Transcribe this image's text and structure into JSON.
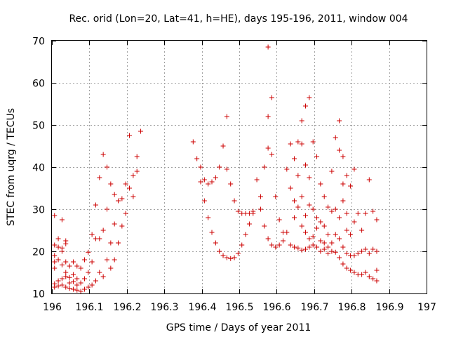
{
  "chart_data": {
    "type": "scatter",
    "title": "Rec. orid (Lon=20, Lat=41, h=HE), days 195-196, 2011, window 004",
    "xlabel": "GPS time / Days of year 2011",
    "ylabel": "STEC from uqrg / TECUs",
    "xlim": [
      196,
      197
    ],
    "ylim": [
      10,
      70
    ],
    "xticks": [
      "196",
      "196.1",
      "196.2",
      "196.3",
      "196.4",
      "196.5",
      "196.6",
      "196.7",
      "196.8",
      "196.9",
      "197"
    ],
    "yticks": [
      "10",
      "20",
      "30",
      "40",
      "50",
      "60",
      "70"
    ],
    "grid": true,
    "marker": "plus",
    "color": "#cc0000",
    "points": [
      [
        196.007,
        28.5
      ],
      [
        196.007,
        21.5
      ],
      [
        196.007,
        19
      ],
      [
        196.007,
        17.5
      ],
      [
        196.007,
        16
      ],
      [
        196.007,
        12.3
      ],
      [
        196.007,
        11.5
      ],
      [
        196.017,
        23
      ],
      [
        196.017,
        21
      ],
      [
        196.017,
        18
      ],
      [
        196.017,
        13
      ],
      [
        196.017,
        11.8
      ],
      [
        196.027,
        27.5
      ],
      [
        196.027,
        20.8
      ],
      [
        196.027,
        20
      ],
      [
        196.027,
        16.8
      ],
      [
        196.027,
        13.5
      ],
      [
        196.027,
        12
      ],
      [
        196.037,
        22.5
      ],
      [
        196.037,
        21.8
      ],
      [
        196.037,
        17.5
      ],
      [
        196.037,
        15
      ],
      [
        196.037,
        14
      ],
      [
        196.037,
        11.5
      ],
      [
        196.047,
        16.5
      ],
      [
        196.047,
        13.8
      ],
      [
        196.047,
        12.5
      ],
      [
        196.047,
        11.2
      ],
      [
        196.057,
        17.5
      ],
      [
        196.057,
        14.5
      ],
      [
        196.057,
        12.8
      ],
      [
        196.057,
        11
      ],
      [
        196.067,
        16.5
      ],
      [
        196.067,
        13.5
      ],
      [
        196.067,
        12
      ],
      [
        196.067,
        10.8
      ],
      [
        196.077,
        16
      ],
      [
        196.077,
        12.5
      ],
      [
        196.077,
        10.5
      ],
      [
        196.087,
        18
      ],
      [
        196.087,
        13.5
      ],
      [
        196.087,
        11
      ],
      [
        196.097,
        19.8
      ],
      [
        196.097,
        15
      ],
      [
        196.097,
        11.5
      ],
      [
        196.107,
        24
      ],
      [
        196.107,
        17.5
      ],
      [
        196.107,
        12
      ],
      [
        196.117,
        31
      ],
      [
        196.117,
        23
      ],
      [
        196.117,
        13
      ],
      [
        196.127,
        37.5
      ],
      [
        196.127,
        23
      ],
      [
        196.127,
        15
      ],
      [
        196.137,
        43
      ],
      [
        196.137,
        25
      ],
      [
        196.137,
        14
      ],
      [
        196.147,
        40
      ],
      [
        196.147,
        30
      ],
      [
        196.147,
        18
      ],
      [
        196.157,
        36
      ],
      [
        196.157,
        22
      ],
      [
        196.157,
        16
      ],
      [
        196.167,
        33.5
      ],
      [
        196.167,
        26.5
      ],
      [
        196.167,
        18
      ],
      [
        196.177,
        32
      ],
      [
        196.177,
        22
      ],
      [
        196.187,
        32.5
      ],
      [
        196.187,
        26
      ],
      [
        196.197,
        36
      ],
      [
        196.197,
        29
      ],
      [
        196.207,
        47.5
      ],
      [
        196.207,
        35
      ],
      [
        196.217,
        38
      ],
      [
        196.217,
        33
      ],
      [
        196.227,
        42.5
      ],
      [
        196.227,
        39
      ],
      [
        196.237,
        48.5
      ],
      [
        196.377,
        46
      ],
      [
        196.387,
        42
      ],
      [
        196.397,
        40
      ],
      [
        196.397,
        36.5
      ],
      [
        196.407,
        37
      ],
      [
        196.407,
        32
      ],
      [
        196.417,
        36
      ],
      [
        196.417,
        28
      ],
      [
        196.427,
        36.5
      ],
      [
        196.427,
        24.5
      ],
      [
        196.437,
        37.5
      ],
      [
        196.437,
        22
      ],
      [
        196.447,
        40
      ],
      [
        196.447,
        20
      ],
      [
        196.457,
        45
      ],
      [
        196.457,
        19
      ],
      [
        196.467,
        39.5
      ],
      [
        196.467,
        52
      ],
      [
        196.467,
        18.5
      ],
      [
        196.477,
        36
      ],
      [
        196.477,
        18.3
      ],
      [
        196.487,
        32
      ],
      [
        196.487,
        18.5
      ],
      [
        196.497,
        29.5
      ],
      [
        196.497,
        19.5
      ],
      [
        196.507,
        29
      ],
      [
        196.507,
        21.5
      ],
      [
        196.517,
        29
      ],
      [
        196.517,
        24
      ],
      [
        196.527,
        29
      ],
      [
        196.527,
        26.5
      ],
      [
        196.537,
        29.5
      ],
      [
        196.537,
        29
      ],
      [
        196.547,
        37
      ],
      [
        196.557,
        33
      ],
      [
        196.557,
        30
      ],
      [
        196.567,
        40
      ],
      [
        196.567,
        26
      ],
      [
        196.577,
        52
      ],
      [
        196.577,
        44.5
      ],
      [
        196.577,
        68.5
      ],
      [
        196.577,
        23
      ],
      [
        196.587,
        56.5
      ],
      [
        196.587,
        43
      ],
      [
        196.587,
        21.5
      ],
      [
        196.597,
        33
      ],
      [
        196.597,
        21
      ],
      [
        196.607,
        27.5
      ],
      [
        196.607,
        21.5
      ],
      [
        196.617,
        24.5
      ],
      [
        196.617,
        22.5
      ],
      [
        196.627,
        39.5
      ],
      [
        196.627,
        24.5
      ],
      [
        196.637,
        45.5
      ],
      [
        196.637,
        35
      ],
      [
        196.637,
        21.5
      ],
      [
        196.647,
        42
      ],
      [
        196.647,
        32
      ],
      [
        196.647,
        28
      ],
      [
        196.647,
        21
      ],
      [
        196.657,
        46
      ],
      [
        196.657,
        38
      ],
      [
        196.657,
        30.5
      ],
      [
        196.657,
        20.8
      ],
      [
        196.667,
        51
      ],
      [
        196.667,
        45.5
      ],
      [
        196.667,
        33
      ],
      [
        196.667,
        26
      ],
      [
        196.667,
        20.3
      ],
      [
        196.677,
        54.5
      ],
      [
        196.677,
        40.5
      ],
      [
        196.677,
        28.5
      ],
      [
        196.677,
        24.5
      ],
      [
        196.677,
        20.5
      ],
      [
        196.687,
        56.5
      ],
      [
        196.687,
        37.5
      ],
      [
        196.687,
        31
      ],
      [
        196.687,
        23
      ],
      [
        196.687,
        21
      ],
      [
        196.697,
        46
      ],
      [
        196.697,
        30
      ],
      [
        196.697,
        23.5
      ],
      [
        196.697,
        21.5
      ],
      [
        196.707,
        42.5
      ],
      [
        196.707,
        28
      ],
      [
        196.707,
        25.5
      ],
      [
        196.707,
        21
      ],
      [
        196.717,
        36
      ],
      [
        196.717,
        27
      ],
      [
        196.717,
        22.5
      ],
      [
        196.717,
        20
      ],
      [
        196.727,
        33
      ],
      [
        196.727,
        26
      ],
      [
        196.727,
        22
      ],
      [
        196.727,
        20.5
      ],
      [
        196.737,
        30.5
      ],
      [
        196.737,
        24
      ],
      [
        196.737,
        21
      ],
      [
        196.737,
        19.5
      ],
      [
        196.747,
        39
      ],
      [
        196.747,
        29.5
      ],
      [
        196.747,
        22
      ],
      [
        196.747,
        20
      ],
      [
        196.757,
        47
      ],
      [
        196.757,
        30
      ],
      [
        196.757,
        24
      ],
      [
        196.757,
        19.8
      ],
      [
        196.767,
        51
      ],
      [
        196.767,
        44
      ],
      [
        196.767,
        28
      ],
      [
        196.767,
        23
      ],
      [
        196.767,
        18.5
      ],
      [
        196.777,
        42.5
      ],
      [
        196.777,
        36
      ],
      [
        196.777,
        32
      ],
      [
        196.777,
        21
      ],
      [
        196.777,
        17
      ],
      [
        196.787,
        38
      ],
      [
        196.787,
        29
      ],
      [
        196.787,
        25
      ],
      [
        196.787,
        19.5
      ],
      [
        196.787,
        16
      ],
      [
        196.797,
        35.5
      ],
      [
        196.797,
        24
      ],
      [
        196.797,
        19
      ],
      [
        196.797,
        15.5
      ],
      [
        196.807,
        39.5
      ],
      [
        196.807,
        27
      ],
      [
        196.807,
        19
      ],
      [
        196.807,
        15
      ],
      [
        196.817,
        29
      ],
      [
        196.817,
        19.5
      ],
      [
        196.817,
        14.5
      ],
      [
        196.827,
        25
      ],
      [
        196.827,
        20
      ],
      [
        196.827,
        14.5
      ],
      [
        196.837,
        29
      ],
      [
        196.837,
        20.5
      ],
      [
        196.837,
        15
      ],
      [
        196.847,
        37
      ],
      [
        196.847,
        19.5
      ],
      [
        196.847,
        14
      ],
      [
        196.857,
        29.5
      ],
      [
        196.857,
        20.5
      ],
      [
        196.857,
        13.5
      ],
      [
        196.867,
        27.5
      ],
      [
        196.867,
        20
      ],
      [
        196.867,
        15.5
      ],
      [
        196.867,
        13
      ]
    ]
  }
}
